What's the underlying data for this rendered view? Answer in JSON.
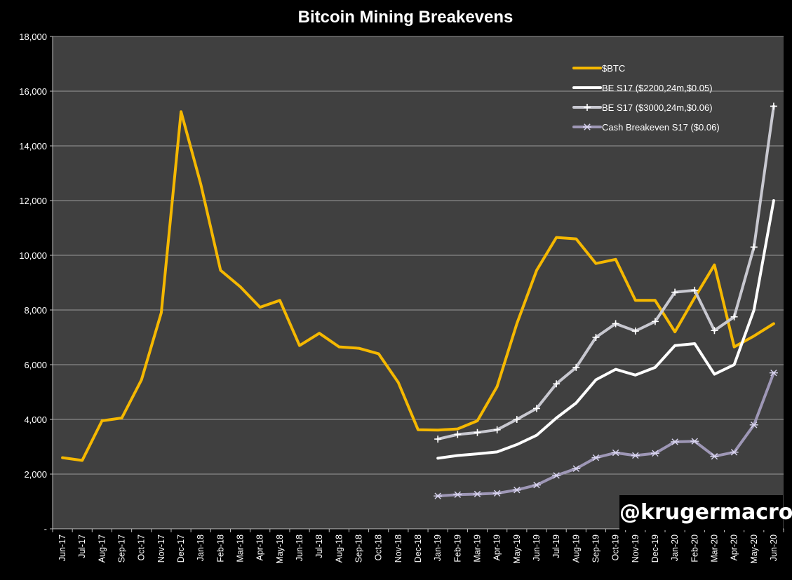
{
  "chart_data": {
    "type": "line",
    "title": "Bitcoin Mining Breakevens",
    "xlabel": "",
    "ylabel": "",
    "ylim": [
      0,
      18000
    ],
    "y_ticks": [
      {
        "value": 0,
        "label": "-"
      },
      {
        "value": 2000,
        "label": "2,000"
      },
      {
        "value": 4000,
        "label": "4,000"
      },
      {
        "value": 6000,
        "label": "6,000"
      },
      {
        "value": 8000,
        "label": "8,000"
      },
      {
        "value": 10000,
        "label": "10,000"
      },
      {
        "value": 12000,
        "label": "12,000"
      },
      {
        "value": 14000,
        "label": "14,000"
      },
      {
        "value": 16000,
        "label": "16,000"
      },
      {
        "value": 18000,
        "label": "18,000"
      }
    ],
    "grid": true,
    "legend_position": "top-right",
    "categories": [
      "Jun-17",
      "Jul-17",
      "Aug-17",
      "Sep-17",
      "Oct-17",
      "Nov-17",
      "Dec-17",
      "Jan-18",
      "Feb-18",
      "Mar-18",
      "Apr-18",
      "May-18",
      "Jun-18",
      "Jul-18",
      "Aug-18",
      "Sep-18",
      "Oct-18",
      "Nov-18",
      "Dec-18",
      "Jan-19",
      "Feb-19",
      "Mar-19",
      "Apr-19",
      "May-19",
      "Jun-19",
      "Jul-19",
      "Aug-19",
      "Sep-19",
      "Oct-19",
      "Nov-19",
      "Dec-19",
      "Jan-20",
      "Feb-20",
      "Mar-20",
      "Apr-20",
      "May-20",
      "Jun-20"
    ],
    "series": [
      {
        "name": "$BTC",
        "color": "#f5b800",
        "marker": "none",
        "values": [
          2600,
          2500,
          3950,
          4050,
          5450,
          7900,
          15250,
          12600,
          9450,
          8850,
          8100,
          8350,
          6700,
          7150,
          6650,
          6600,
          6400,
          5350,
          3620,
          3610,
          3650,
          3950,
          5200,
          7500,
          9450,
          10650,
          10600,
          9700,
          9850,
          8350,
          8350,
          7200,
          8450,
          9650,
          6650,
          7050,
          7500
        ]
      },
      {
        "name": "BE S17 ($2200,24m,$0.05)",
        "color": "#ffffff",
        "marker": "none",
        "values": [
          null,
          null,
          null,
          null,
          null,
          null,
          null,
          null,
          null,
          null,
          null,
          null,
          null,
          null,
          null,
          null,
          null,
          null,
          null,
          2580,
          2680,
          2740,
          2810,
          3080,
          3420,
          4050,
          4600,
          5450,
          5830,
          5620,
          5900,
          6700,
          6770,
          5650,
          6000,
          8000,
          12000
        ]
      },
      {
        "name": "BE S17 ($3000,24m,$0.06)",
        "color": "#c8c8d0",
        "marker": "plus",
        "values": [
          null,
          null,
          null,
          null,
          null,
          null,
          null,
          null,
          null,
          null,
          null,
          null,
          null,
          null,
          null,
          null,
          null,
          null,
          null,
          3280,
          3450,
          3520,
          3620,
          4000,
          4400,
          5300,
          5900,
          7000,
          7500,
          7230,
          7580,
          8650,
          8720,
          7250,
          7750,
          10300,
          15450
        ]
      },
      {
        "name": "Cash Breakeven S17 ($0.06)",
        "color": "#9e97b6",
        "marker": "asterisk",
        "values": [
          null,
          null,
          null,
          null,
          null,
          null,
          null,
          null,
          null,
          null,
          null,
          null,
          null,
          null,
          null,
          null,
          null,
          null,
          null,
          1200,
          1250,
          1270,
          1300,
          1420,
          1600,
          1950,
          2200,
          2600,
          2780,
          2680,
          2760,
          3180,
          3200,
          2650,
          2800,
          3800,
          5700
        ]
      }
    ]
  },
  "watermark": "@krugermacro"
}
